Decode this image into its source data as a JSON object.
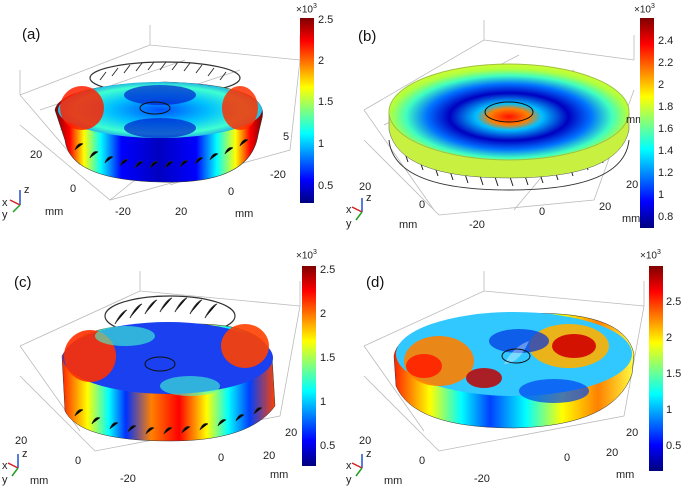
{
  "panels": [
    {
      "label": "(a)",
      "multiplier": "×10",
      "exponent": "3",
      "colorbar_ticks": [
        "2.5",
        "2",
        "1.5",
        "1",
        "0.5"
      ],
      "axis_labels": {
        "x_ticks": [
          "-20",
          "0",
          "20"
        ],
        "y_ticks": [
          "20",
          "0",
          "-20"
        ],
        "z_ticks": [
          "5"
        ],
        "unit": "mm"
      },
      "triad": {
        "x": "x",
        "y": "y",
        "z": "z"
      }
    },
    {
      "label": "(b)",
      "multiplier": "×10",
      "exponent": "3",
      "colorbar_ticks": [
        "2.4",
        "2.2",
        "2",
        "1.8",
        "1.6",
        "1.4",
        "1.2",
        "1",
        "0.8"
      ],
      "axis_labels": {
        "x_ticks": [
          "-20",
          "0",
          "20"
        ],
        "y_ticks": [
          "20",
          "0"
        ],
        "z_ticks": [
          "20"
        ],
        "unit": "mm"
      },
      "triad": {
        "x": "x",
        "y": "y",
        "z": "z"
      }
    },
    {
      "label": "(c)",
      "multiplier": "×10",
      "exponent": "3",
      "colorbar_ticks": [
        "2.5",
        "2",
        "1.5",
        "1",
        "0.5"
      ],
      "axis_labels": {
        "x_ticks": [
          "-20",
          "0",
          "20"
        ],
        "y_ticks": [
          "20",
          "0"
        ],
        "z_ticks": [
          "20"
        ],
        "unit": "mm"
      },
      "triad": {
        "x": "x",
        "y": "y",
        "z": "z"
      }
    },
    {
      "label": "(d)",
      "multiplier": "×10",
      "exponent": "3",
      "colorbar_ticks": [
        "2.5",
        "2",
        "1.5",
        "1",
        "0.5"
      ],
      "axis_labels": {
        "x_ticks": [
          "-20",
          "0",
          "20"
        ],
        "y_ticks": [
          "20",
          "0"
        ],
        "z_ticks": [
          "20"
        ],
        "unit": "mm"
      },
      "triad": {
        "x": "x",
        "y": "y",
        "z": "z"
      }
    }
  ],
  "colors": {
    "jet": [
      "#00007f",
      "#0000ff",
      "#007fff",
      "#00ffff",
      "#7fff7f",
      "#ffff00",
      "#ff7f00",
      "#ff0000",
      "#7f0000"
    ],
    "axis_x": "#d62020",
    "axis_y": "#20a020",
    "axis_z": "#2050d0"
  }
}
